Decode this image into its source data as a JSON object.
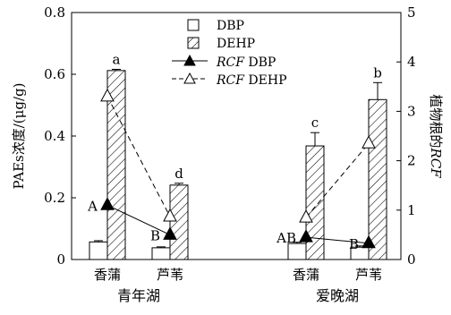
{
  "chart_data": {
    "type": "bar",
    "groups": [
      {
        "name": "青年湖",
        "categories": [
          "香蒲",
          "芦苇"
        ]
      },
      {
        "name": "爱晚湖",
        "categories": [
          "香蒲",
          "芦苇"
        ]
      }
    ],
    "ylabel": "PAEs浓度/(μg/g)",
    "ylim": [
      0,
      0.8
    ],
    "yticks": [
      "0",
      "0.2",
      "0.4",
      "0.6",
      "0.8"
    ],
    "y2label_prefix": "植物根的",
    "y2label_italic": "RCF",
    "y2lim": [
      0,
      5
    ],
    "y2ticks": [
      "0",
      "1",
      "2",
      "3",
      "4",
      "5"
    ],
    "bar_series": [
      {
        "name": "DBP",
        "pattern": "open",
        "values": [
          0.057,
          0.038,
          0.052,
          0.04
        ],
        "errors": [
          0.004,
          0.003,
          0.004,
          0.004
        ]
      },
      {
        "name": "DEHP",
        "pattern": "hatched",
        "values": [
          0.612,
          0.241,
          0.368,
          0.518
        ],
        "errors": [
          0.004,
          0.006,
          0.043,
          0.055
        ],
        "labels": [
          "a",
          "d",
          "c",
          "b"
        ]
      }
    ],
    "line_series": [
      {
        "name_italic": "RCF",
        "name": "DBP",
        "marker": "filled-triangle",
        "line": "solid",
        "y2_values": [
          1.1,
          0.5,
          0.45,
          0.33
        ],
        "labels": [
          "A",
          "B",
          "AB",
          "B"
        ]
      },
      {
        "name_italic": "RCF",
        "name": "DEHP",
        "marker": "open-triangle",
        "line": "dashed",
        "y2_values": [
          3.3,
          0.87,
          0.85,
          2.35
        ]
      }
    ],
    "legend_placement": "top-center",
    "grid": false
  }
}
